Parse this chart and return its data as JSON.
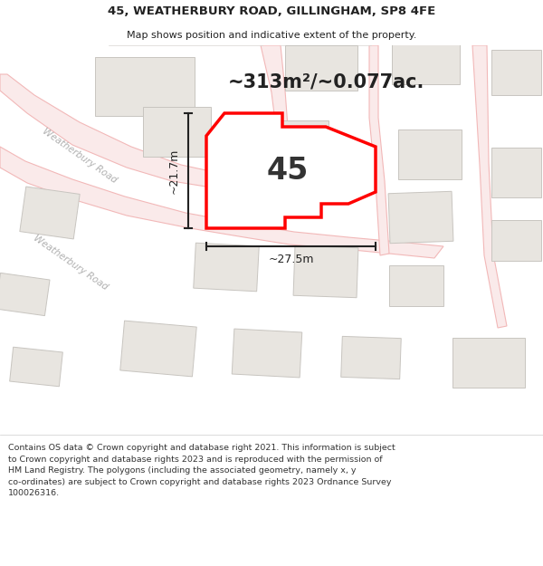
{
  "title": "45, WEATHERBURY ROAD, GILLINGHAM, SP8 4FE",
  "subtitle": "Map shows position and indicative extent of the property.",
  "area_text": "~313m²/~0.077ac.",
  "label_45": "45",
  "dim_width": "~27.5m",
  "dim_height": "~21.7m",
  "footer": "Contains OS data © Crown copyright and database right 2021. This information is subject to Crown copyright and database rights 2023 and is reproduced with the permission of HM Land Registry. The polygons (including the associated geometry, namely x, y co-ordinates) are subject to Crown copyright and database rights 2023 Ordnance Survey 100026316.",
  "map_bg": "#f7f5f2",
  "road_color": "#f2b8b8",
  "road_outline": "#e8a0a0",
  "building_color": "#e8e5e0",
  "building_edge": "#c8c5c0",
  "plot_outline_color": "#d8d5d0",
  "highlight_color": "#ff0000",
  "road_label_color": "#b0b0b0",
  "dim_color": "#222222",
  "title_color": "#222222",
  "footer_color": "#333333"
}
